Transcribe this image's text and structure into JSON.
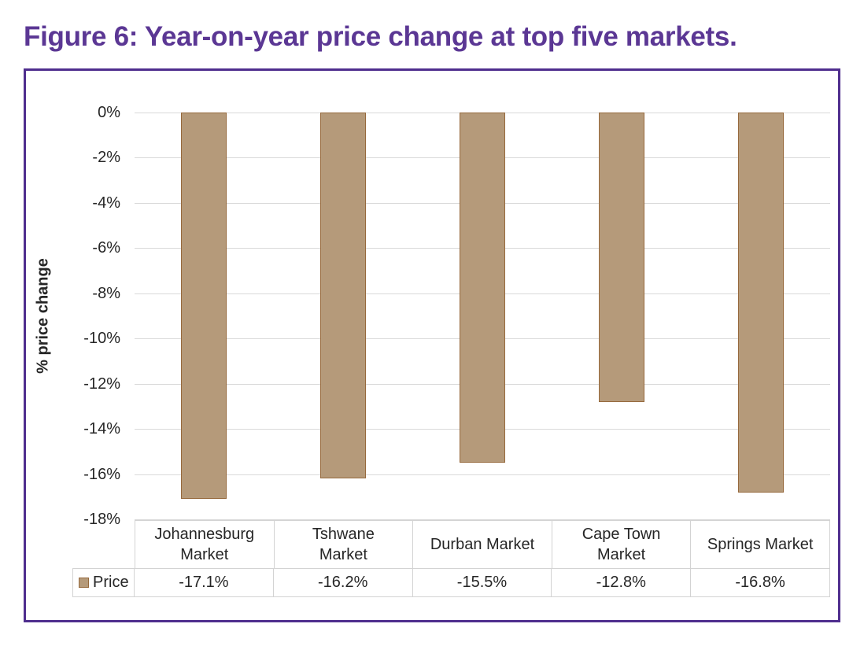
{
  "title": "Figure 6: Year-on-year price change at top five markets.",
  "chart_data": {
    "type": "bar",
    "title": "Figure 6: Year-on-year price change at top five markets.",
    "categories": [
      "Johannesburg Market",
      "Tshwane Market",
      "Durban Market",
      "Cape Town Market",
      "Springs Market"
    ],
    "series": [
      {
        "name": "Price",
        "values": [
          -17.1,
          -16.2,
          -15.5,
          -12.8,
          -16.8
        ]
      }
    ],
    "value_labels": [
      "-17.1%",
      "-16.2%",
      "-15.5%",
      "-12.8%",
      "-16.8%"
    ],
    "xlabel": "",
    "ylabel": "% price change",
    "ylim": [
      -18,
      0
    ],
    "y_ticks": [
      "0%",
      "-2%",
      "-4%",
      "-6%",
      "-8%",
      "-10%",
      "-12%",
      "-14%",
      "-16%",
      "-18%"
    ],
    "grid": "horizontal",
    "legend_label": "Price",
    "legend_position": "bottom table row"
  },
  "colors": {
    "bar_fill": "#b59a7a",
    "bar_border": "#96693c",
    "title_purple": "#5b3794",
    "frame_purple": "#4f2e8e",
    "grid_gray": "#d9d9d9",
    "table_border": "#d3d3d3",
    "text": "#262626"
  }
}
